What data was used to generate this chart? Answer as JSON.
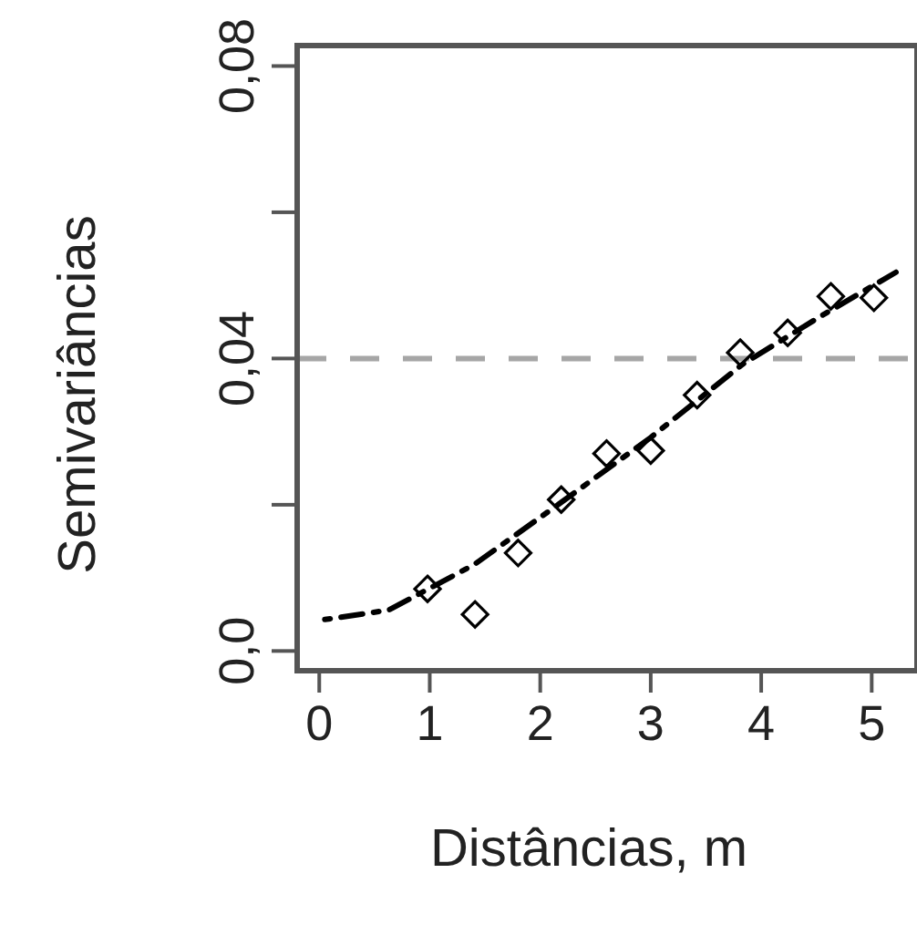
{
  "chart_data": {
    "type": "scatter",
    "xlabel": "Distâncias, m",
    "ylabel": "Semivariâncias",
    "xlim": [
      -0.2,
      5.41
    ],
    "ylim": [
      -0.0027,
      0.0828
    ],
    "xticks": [
      0,
      1,
      2,
      3,
      4,
      5
    ],
    "yticks": [
      {
        "value": 0,
        "label": "0,0"
      },
      {
        "value": 0.02,
        "label": null
      },
      {
        "value": 0.04,
        "label": "0,04"
      },
      {
        "value": 0.06,
        "label": null
      },
      {
        "value": 0.08,
        "label": "0,08"
      }
    ],
    "grid": false,
    "series": [
      {
        "marker": "diamond",
        "color": "#000000",
        "x": [
          0.98,
          1.41,
          1.8,
          2.19,
          2.6,
          3.0,
          3.42,
          3.81,
          4.24,
          4.63,
          5.02
        ],
        "values": [
          0.0085,
          0.005,
          0.0134,
          0.0207,
          0.027,
          0.0274,
          0.035,
          0.0408,
          0.0435,
          0.0485,
          0.0483
        ]
      },
      {
        "type": "line",
        "marker": "none",
        "line_style": "dashed",
        "color": "#000000",
        "x": [
          0.05,
          0.63,
          1.4,
          2.17,
          3.0,
          3.83,
          4.54,
          5.22
        ],
        "values": [
          0.0043,
          0.0056,
          0.0118,
          0.0201,
          0.0292,
          0.0392,
          0.0458,
          0.0518
        ]
      }
    ],
    "ref_lines": [
      {
        "axis": "y",
        "value": 0.04,
        "color": "#a6a6a6",
        "line_style": "dashed"
      }
    ]
  }
}
